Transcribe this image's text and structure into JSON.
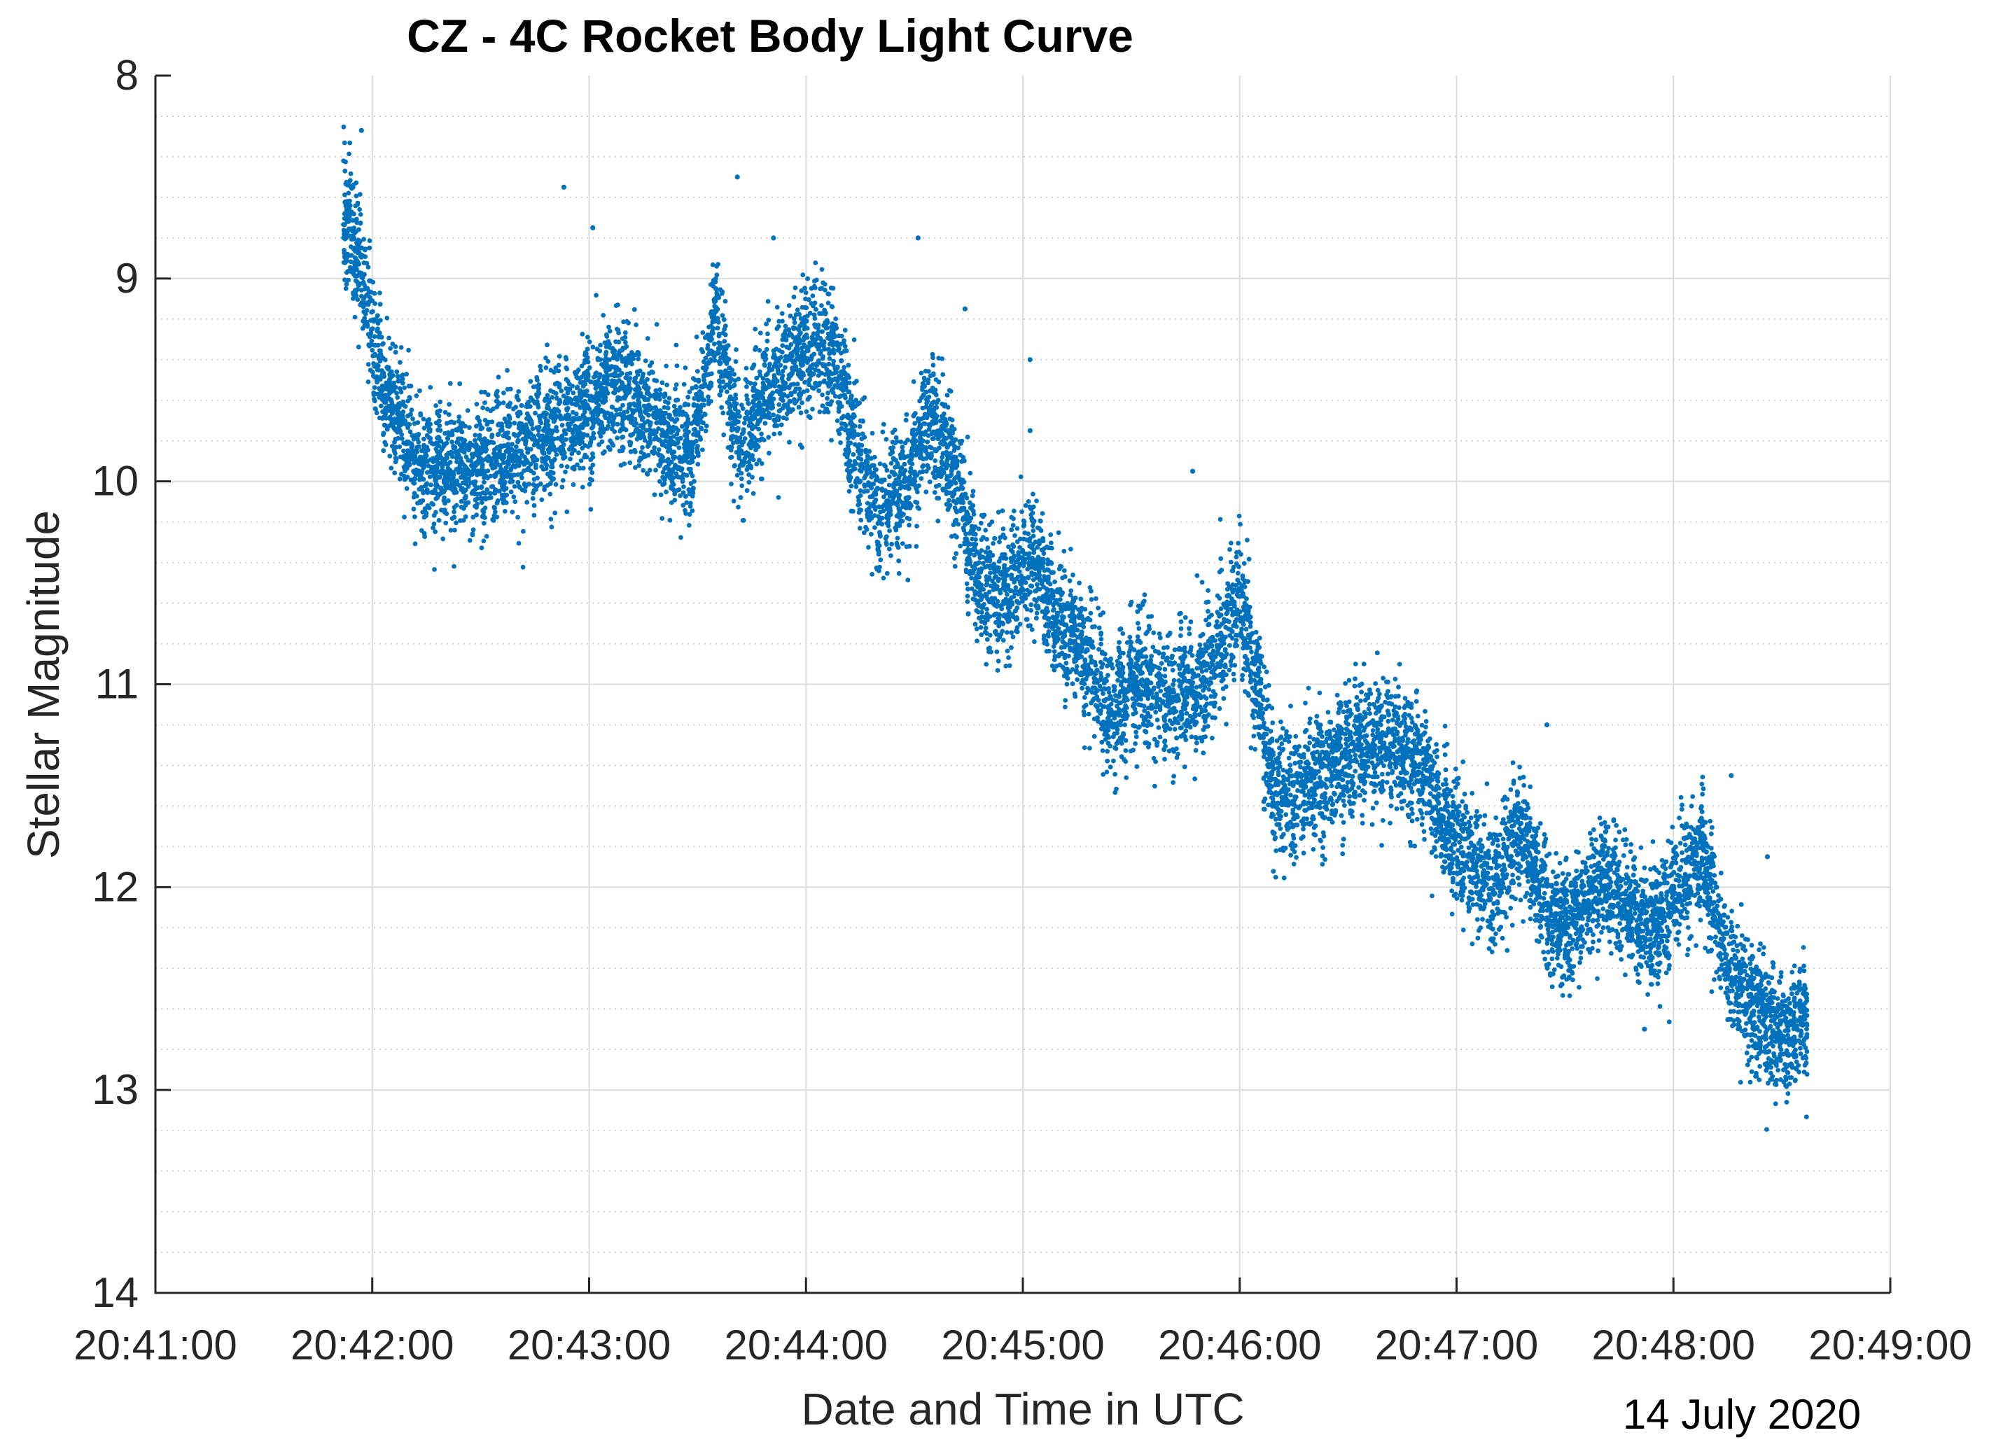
{
  "chart_data": {
    "type": "scatter",
    "title": "CZ - 4C Rocket Body Light Curve",
    "xlabel": "Date and Time in UTC",
    "ylabel": "Stellar Magnitude",
    "date_note": "14 July 2020",
    "x_ticks": [
      "20:41:00",
      "20:42:00",
      "20:43:00",
      "20:44:00",
      "20:45:00",
      "20:46:00",
      "20:47:00",
      "20:48:00",
      "20:49:00"
    ],
    "xlim_seconds": [
      0,
      480
    ],
    "x_origin": "20:41:00",
    "y_ticks": [
      "8",
      "9",
      "10",
      "11",
      "12",
      "13",
      "14"
    ],
    "ylim": [
      8,
      14
    ],
    "y_reversed": true,
    "grid": "on",
    "minor_grid_y": true,
    "marker_color": "#0072BD",
    "series": [
      {
        "name": "Stellar Magnitude",
        "time_range_seconds": [
          52,
          457
        ],
        "trend_knots": {
          "t": [
            52,
            55,
            58,
            62,
            72,
            85,
            100,
            115,
            128,
            140,
            148,
            155,
            162,
            168,
            175,
            182,
            188,
            193,
            200,
            208,
            214,
            220,
            228,
            236,
            243,
            250,
            258,
            265,
            272,
            280,
            290,
            300,
            310,
            318,
            325,
            332,
            340,
            348,
            355,
            362,
            370,
            378,
            385,
            392,
            400,
            408,
            414,
            420,
            428,
            436,
            445,
            452,
            457
          ],
          "mag": [
            8.7,
            8.85,
            9.05,
            9.5,
            9.9,
            9.95,
            9.85,
            9.7,
            9.5,
            9.75,
            9.9,
            9.2,
            9.85,
            9.6,
            9.45,
            9.3,
            9.4,
            9.8,
            10.15,
            10.0,
            9.65,
            9.9,
            10.5,
            10.55,
            10.35,
            10.7,
            10.9,
            11.15,
            10.95,
            11.1,
            11.0,
            10.55,
            11.55,
            11.5,
            11.45,
            11.3,
            11.3,
            11.35,
            11.6,
            11.85,
            12.0,
            11.7,
            12.15,
            12.2,
            11.95,
            12.1,
            12.25,
            12.05,
            11.85,
            12.45,
            12.65,
            12.75,
            12.6
          ]
        },
        "scatter_half_width": 0.3,
        "point_count": 11000,
        "notable_points": {
          "t": [
            57,
            113,
            121,
            161,
            171,
            211,
            224,
            242,
            242,
            287,
            385,
            412,
            436,
            446
          ],
          "mag": [
            8.27,
            8.55,
            8.75,
            8.5,
            8.8,
            8.8,
            9.15,
            9.4,
            9.75,
            9.95,
            11.2,
            12.7,
            11.45,
            11.85
          ]
        }
      }
    ]
  }
}
